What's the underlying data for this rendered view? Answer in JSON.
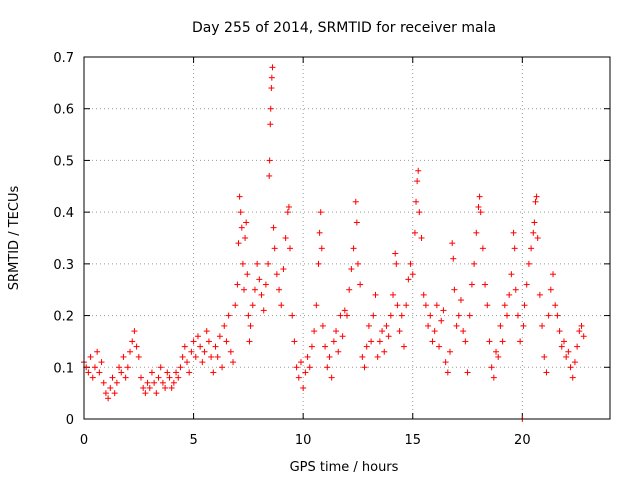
{
  "chart_data": {
    "type": "scatter",
    "title": "Day 255 of 2014, SRMTID for receiver mala",
    "xlabel": "GPS time / hours",
    "ylabel": "SRMTID / TECUs",
    "xlim": [
      0,
      24
    ],
    "ylim": [
      0,
      0.7
    ],
    "xticks": [
      0,
      5,
      10,
      15,
      20
    ],
    "xtick_labels": [
      "0",
      "5",
      "10",
      "15",
      "20"
    ],
    "yticks": [
      0,
      0.1,
      0.2,
      0.3,
      0.4,
      0.5,
      0.6,
      0.7
    ],
    "ytick_labels": [
      "0",
      "0.1",
      "0.2",
      "0.3",
      "0.4",
      "0.5",
      "0.6",
      "0.7"
    ],
    "grid": true,
    "marker": "+",
    "color": "#ff0000",
    "series": [
      {
        "name": "SRMTID",
        "points": [
          [
            0.0,
            0.11
          ],
          [
            0.1,
            0.1
          ],
          [
            0.2,
            0.09
          ],
          [
            0.3,
            0.12
          ],
          [
            0.4,
            0.08
          ],
          [
            0.5,
            0.1
          ],
          [
            0.6,
            0.13
          ],
          [
            0.7,
            0.09
          ],
          [
            0.8,
            0.11
          ],
          [
            0.9,
            0.07
          ],
          [
            1.0,
            0.05
          ],
          [
            1.1,
            0.04
          ],
          [
            1.2,
            0.06
          ],
          [
            1.3,
            0.08
          ],
          [
            1.4,
            0.05
          ],
          [
            1.5,
            0.07
          ],
          [
            1.6,
            0.1
          ],
          [
            1.7,
            0.09
          ],
          [
            1.8,
            0.12
          ],
          [
            1.9,
            0.08
          ],
          [
            2.0,
            0.1
          ],
          [
            2.1,
            0.13
          ],
          [
            2.2,
            0.15
          ],
          [
            2.3,
            0.17
          ],
          [
            2.4,
            0.14
          ],
          [
            2.5,
            0.12
          ],
          [
            2.6,
            0.08
          ],
          [
            2.7,
            0.06
          ],
          [
            2.8,
            0.05
          ],
          [
            2.9,
            0.07
          ],
          [
            3.0,
            0.06
          ],
          [
            3.1,
            0.09
          ],
          [
            3.2,
            0.07
          ],
          [
            3.3,
            0.05
          ],
          [
            3.4,
            0.08
          ],
          [
            3.5,
            0.1
          ],
          [
            3.6,
            0.07
          ],
          [
            3.7,
            0.06
          ],
          [
            3.8,
            0.09
          ],
          [
            3.9,
            0.08
          ],
          [
            4.0,
            0.06
          ],
          [
            4.1,
            0.07
          ],
          [
            4.2,
            0.09
          ],
          [
            4.3,
            0.08
          ],
          [
            4.4,
            0.1
          ],
          [
            4.5,
            0.12
          ],
          [
            4.6,
            0.14
          ],
          [
            4.7,
            0.11
          ],
          [
            4.8,
            0.09
          ],
          [
            4.9,
            0.13
          ],
          [
            5.0,
            0.15
          ],
          [
            5.1,
            0.12
          ],
          [
            5.2,
            0.16
          ],
          [
            5.3,
            0.14
          ],
          [
            5.4,
            0.11
          ],
          [
            5.5,
            0.13
          ],
          [
            5.6,
            0.17
          ],
          [
            5.7,
            0.15
          ],
          [
            5.8,
            0.12
          ],
          [
            5.9,
            0.09
          ],
          [
            6.0,
            0.14
          ],
          [
            6.1,
            0.12
          ],
          [
            6.2,
            0.16
          ],
          [
            6.3,
            0.1
          ],
          [
            6.4,
            0.18
          ],
          [
            6.5,
            0.15
          ],
          [
            6.6,
            0.2
          ],
          [
            6.7,
            0.13
          ],
          [
            6.8,
            0.11
          ],
          [
            6.9,
            0.22
          ],
          [
            7.0,
            0.26
          ],
          [
            7.05,
            0.34
          ],
          [
            7.1,
            0.43
          ],
          [
            7.15,
            0.4
          ],
          [
            7.2,
            0.37
          ],
          [
            7.25,
            0.3
          ],
          [
            7.3,
            0.25
          ],
          [
            7.35,
            0.35
          ],
          [
            7.4,
            0.38
          ],
          [
            7.45,
            0.28
          ],
          [
            7.5,
            0.2
          ],
          [
            7.55,
            0.15
          ],
          [
            7.6,
            0.18
          ],
          [
            7.7,
            0.22
          ],
          [
            7.8,
            0.25
          ],
          [
            7.9,
            0.3
          ],
          [
            8.0,
            0.27
          ],
          [
            8.1,
            0.24
          ],
          [
            8.2,
            0.21
          ],
          [
            8.3,
            0.26
          ],
          [
            8.4,
            0.3
          ],
          [
            8.45,
            0.47
          ],
          [
            8.47,
            0.5
          ],
          [
            8.5,
            0.57
          ],
          [
            8.52,
            0.6
          ],
          [
            8.55,
            0.64
          ],
          [
            8.57,
            0.66
          ],
          [
            8.6,
            0.68
          ],
          [
            8.65,
            0.37
          ],
          [
            8.7,
            0.33
          ],
          [
            8.8,
            0.28
          ],
          [
            8.9,
            0.25
          ],
          [
            9.0,
            0.22
          ],
          [
            9.1,
            0.29
          ],
          [
            9.2,
            0.35
          ],
          [
            9.3,
            0.4
          ],
          [
            9.35,
            0.41
          ],
          [
            9.4,
            0.33
          ],
          [
            9.5,
            0.2
          ],
          [
            9.6,
            0.15
          ],
          [
            9.7,
            0.1
          ],
          [
            9.8,
            0.08
          ],
          [
            9.9,
            0.11
          ],
          [
            10.0,
            0.06
          ],
          [
            10.1,
            0.09
          ],
          [
            10.2,
            0.12
          ],
          [
            10.3,
            0.1
          ],
          [
            10.4,
            0.14
          ],
          [
            10.5,
            0.17
          ],
          [
            10.6,
            0.22
          ],
          [
            10.7,
            0.3
          ],
          [
            10.75,
            0.36
          ],
          [
            10.8,
            0.4
          ],
          [
            10.85,
            0.33
          ],
          [
            10.9,
            0.18
          ],
          [
            11.0,
            0.14
          ],
          [
            11.1,
            0.1
          ],
          [
            11.2,
            0.12
          ],
          [
            11.3,
            0.08
          ],
          [
            11.4,
            0.15
          ],
          [
            11.5,
            0.17
          ],
          [
            11.6,
            0.13
          ],
          [
            11.7,
            0.2
          ],
          [
            11.8,
            0.16
          ],
          [
            11.9,
            0.21
          ],
          [
            12.0,
            0.2
          ],
          [
            12.1,
            0.25
          ],
          [
            12.2,
            0.29
          ],
          [
            12.3,
            0.33
          ],
          [
            12.4,
            0.42
          ],
          [
            12.45,
            0.38
          ],
          [
            12.5,
            0.3
          ],
          [
            12.6,
            0.26
          ],
          [
            12.7,
            0.12
          ],
          [
            12.8,
            0.1
          ],
          [
            12.9,
            0.14
          ],
          [
            13.0,
            0.18
          ],
          [
            13.1,
            0.15
          ],
          [
            13.2,
            0.2
          ],
          [
            13.3,
            0.24
          ],
          [
            13.4,
            0.12
          ],
          [
            13.5,
            0.15
          ],
          [
            13.6,
            0.17
          ],
          [
            13.7,
            0.13
          ],
          [
            13.8,
            0.18
          ],
          [
            13.9,
            0.16
          ],
          [
            14.0,
            0.2
          ],
          [
            14.1,
            0.24
          ],
          [
            14.2,
            0.32
          ],
          [
            14.25,
            0.3
          ],
          [
            14.3,
            0.22
          ],
          [
            14.4,
            0.17
          ],
          [
            14.5,
            0.2
          ],
          [
            14.6,
            0.14
          ],
          [
            14.7,
            0.22
          ],
          [
            14.8,
            0.27
          ],
          [
            14.9,
            0.3
          ],
          [
            15.0,
            0.28
          ],
          [
            15.1,
            0.36
          ],
          [
            15.15,
            0.42
          ],
          [
            15.2,
            0.46
          ],
          [
            15.25,
            0.48
          ],
          [
            15.3,
            0.4
          ],
          [
            15.4,
            0.35
          ],
          [
            15.5,
            0.24
          ],
          [
            15.6,
            0.22
          ],
          [
            15.7,
            0.18
          ],
          [
            15.8,
            0.2
          ],
          [
            15.9,
            0.15
          ],
          [
            16.0,
            0.17
          ],
          [
            16.1,
            0.22
          ],
          [
            16.2,
            0.14
          ],
          [
            16.3,
            0.19
          ],
          [
            16.4,
            0.21
          ],
          [
            16.5,
            0.11
          ],
          [
            16.6,
            0.09
          ],
          [
            16.7,
            0.13
          ],
          [
            16.8,
            0.34
          ],
          [
            16.85,
            0.31
          ],
          [
            16.9,
            0.25
          ],
          [
            17.0,
            0.18
          ],
          [
            17.1,
            0.2
          ],
          [
            17.2,
            0.23
          ],
          [
            17.3,
            0.17
          ],
          [
            17.4,
            0.15
          ],
          [
            17.5,
            0.09
          ],
          [
            17.6,
            0.2
          ],
          [
            17.7,
            0.26
          ],
          [
            17.8,
            0.3
          ],
          [
            17.9,
            0.36
          ],
          [
            18.0,
            0.41
          ],
          [
            18.05,
            0.43
          ],
          [
            18.1,
            0.4
          ],
          [
            18.2,
            0.33
          ],
          [
            18.3,
            0.26
          ],
          [
            18.4,
            0.22
          ],
          [
            18.5,
            0.15
          ],
          [
            18.6,
            0.1
          ],
          [
            18.7,
            0.08
          ],
          [
            18.8,
            0.13
          ],
          [
            18.9,
            0.12
          ],
          [
            19.0,
            0.18
          ],
          [
            19.1,
            0.15
          ],
          [
            19.2,
            0.22
          ],
          [
            19.3,
            0.2
          ],
          [
            19.4,
            0.24
          ],
          [
            19.5,
            0.28
          ],
          [
            19.6,
            0.36
          ],
          [
            19.65,
            0.33
          ],
          [
            19.7,
            0.25
          ],
          [
            19.8,
            0.2
          ],
          [
            19.9,
            0.15
          ],
          [
            20.0,
            0.0
          ],
          [
            20.05,
            0.18
          ],
          [
            20.1,
            0.22
          ],
          [
            20.2,
            0.26
          ],
          [
            20.3,
            0.3
          ],
          [
            20.4,
            0.33
          ],
          [
            20.5,
            0.36
          ],
          [
            20.55,
            0.38
          ],
          [
            20.6,
            0.42
          ],
          [
            20.65,
            0.43
          ],
          [
            20.7,
            0.35
          ],
          [
            20.8,
            0.24
          ],
          [
            20.9,
            0.18
          ],
          [
            21.0,
            0.12
          ],
          [
            21.1,
            0.09
          ],
          [
            21.2,
            0.2
          ],
          [
            21.3,
            0.25
          ],
          [
            21.4,
            0.28
          ],
          [
            21.5,
            0.22
          ],
          [
            21.6,
            0.2
          ],
          [
            21.7,
            0.17
          ],
          [
            21.8,
            0.14
          ],
          [
            21.9,
            0.15
          ],
          [
            22.0,
            0.12
          ],
          [
            22.1,
            0.13
          ],
          [
            22.2,
            0.1
          ],
          [
            22.3,
            0.08
          ],
          [
            22.4,
            0.11
          ],
          [
            22.5,
            0.14
          ],
          [
            22.6,
            0.17
          ],
          [
            22.7,
            0.18
          ],
          [
            22.8,
            0.16
          ]
        ]
      }
    ]
  }
}
